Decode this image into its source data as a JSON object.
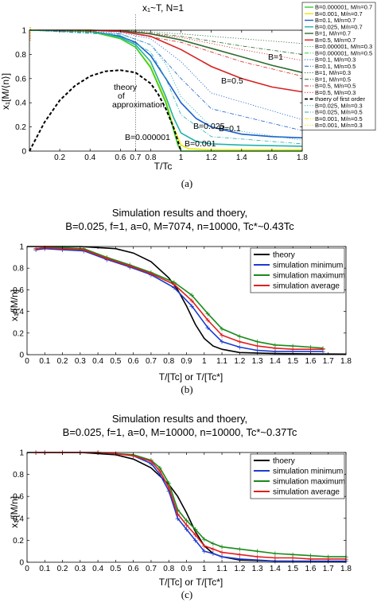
{
  "chart_data": [
    {
      "type": "line",
      "caption": "(a)",
      "title": "x₁~T, N=1",
      "xlabel": "T/Tc",
      "ylabel": "x₁[M/⟨n⟩]",
      "xlim": [
        0,
        1.8
      ],
      "ylim": [
        0,
        1
      ],
      "xticks": [
        "0.2",
        "0.4",
        "0.6",
        "0.7",
        "0.8",
        "1",
        "1.2",
        "1.4",
        "1.6",
        "1.8"
      ],
      "xtick_values": [
        0.2,
        0.4,
        0.6,
        0.7,
        0.8,
        1.0,
        1.2,
        1.4,
        1.6,
        1.8
      ],
      "yticks": [
        "0",
        "0.2",
        "0.4",
        "0.6",
        "0.8",
        "1"
      ],
      "legend_position": "right",
      "legend": [
        {
          "label": "B=0.000001, M/n=0.7",
          "color": "#32cd32",
          "dash": "solid"
        },
        {
          "label": "B=0.001, M/n=0.7",
          "color": "#e8e800",
          "dash": "solid"
        },
        {
          "label": "B=0.1, M/n=0.7",
          "color": "#1a5fd0",
          "dash": "solid"
        },
        {
          "label": "B=0.025, M/n=0.7",
          "color": "#20b2aa",
          "dash": "solid"
        },
        {
          "label": "B=1, M/n=0.7",
          "color": "#2e6b2e",
          "dash": "solid"
        },
        {
          "label": "B=0.5, M/n=0.7",
          "color": "#d62020",
          "dash": "solid"
        },
        {
          "label": "B=0.000001, M/n=0.3",
          "color": "#32cd32",
          "dash": "dotted"
        },
        {
          "label": "B=0.000001, M/n=0.5",
          "color": "#32cd32",
          "dash": "dashdot"
        },
        {
          "label": "B=0.1, M/n=0.3",
          "color": "#1a5fd0",
          "dash": "dotted"
        },
        {
          "label": "B=0.1, M/n=0.5",
          "color": "#1a5fd0",
          "dash": "dashdot"
        },
        {
          "label": "B=1, M/n=0.3",
          "color": "#2e6b2e",
          "dash": "dotted"
        },
        {
          "label": "B=1, M/n=0.5",
          "color": "#2e6b2e",
          "dash": "dashdot"
        },
        {
          "label": "B=0.5, M/n=0.5",
          "color": "#d62020",
          "dash": "dashdot"
        },
        {
          "label": "B=0.5, M/n=0.3",
          "color": "#d62020",
          "dash": "dotted"
        },
        {
          "label": "thoery of first order",
          "color": "#000000",
          "dash": "dashed"
        },
        {
          "label": "B=0.025, M/n=0.3",
          "color": "#20b2aa",
          "dash": "dotted"
        },
        {
          "label": "B=0.025, M/n=0.5",
          "color": "#20b2aa",
          "dash": "dashdot"
        },
        {
          "label": "B=0.001, M/n=0.5",
          "color": "#e8e800",
          "dash": "dashdot"
        },
        {
          "label": "B=0.001, M/n=0.3",
          "color": "#e8e800",
          "dash": "dotted"
        }
      ],
      "annotations": [
        "B=1",
        "B=0.5",
        "B=0.1",
        "B=0.025",
        "B=0.000001",
        "B=0.001",
        "theory",
        "of",
        "approximation"
      ],
      "series": [
        {
          "name": "B=1, M/n=0.7",
          "color": "#2e6b2e",
          "dash": "solid",
          "x": [
            0,
            0.4,
            0.6,
            0.8,
            1.0,
            1.2,
            1.4,
            1.6,
            1.8
          ],
          "y": [
            1,
            1,
            0.995,
            0.97,
            0.92,
            0.85,
            0.78,
            0.71,
            0.65
          ]
        },
        {
          "name": "B=0.5, M/n=0.7",
          "color": "#d62020",
          "dash": "solid",
          "x": [
            0,
            0.4,
            0.6,
            0.8,
            1.0,
            1.2,
            1.4,
            1.6,
            1.8
          ],
          "y": [
            1,
            1,
            0.99,
            0.95,
            0.84,
            0.7,
            0.6,
            0.53,
            0.49
          ]
        },
        {
          "name": "B=0.1, M/n=0.7",
          "color": "#1a5fd0",
          "dash": "solid",
          "x": [
            0,
            0.4,
            0.6,
            0.7,
            0.8,
            0.9,
            1.0,
            1.1,
            1.2,
            1.4,
            1.6,
            1.8
          ],
          "y": [
            1,
            0.99,
            0.95,
            0.9,
            0.79,
            0.6,
            0.4,
            0.27,
            0.2,
            0.14,
            0.12,
            0.11
          ]
        },
        {
          "name": "B=0.025, M/n=0.7",
          "color": "#20b2aa",
          "dash": "solid",
          "x": [
            0,
            0.4,
            0.6,
            0.7,
            0.8,
            0.9,
            0.95,
            1.0,
            1.1,
            1.2,
            1.4,
            1.8
          ],
          "y": [
            1,
            0.99,
            0.94,
            0.88,
            0.74,
            0.45,
            0.28,
            0.15,
            0.08,
            0.06,
            0.05,
            0.04
          ]
        },
        {
          "name": "B=0.001, M/n=0.7",
          "color": "#e8e800",
          "dash": "solid",
          "x": [
            0,
            0.4,
            0.6,
            0.7,
            0.8,
            0.9,
            0.95,
            1.0,
            1.05,
            1.2,
            1.8
          ],
          "y": [
            1,
            0.99,
            0.93,
            0.86,
            0.7,
            0.42,
            0.2,
            0.05,
            0.02,
            0.01,
            0.01
          ]
        },
        {
          "name": "B=0.000001, M/n=0.7",
          "color": "#32cd32",
          "dash": "solid",
          "x": [
            0,
            0.4,
            0.6,
            0.7,
            0.8,
            0.9,
            0.95,
            0.98,
            1.0,
            1.2,
            1.8
          ],
          "y": [
            1,
            0.99,
            0.93,
            0.86,
            0.69,
            0.4,
            0.18,
            0.05,
            0,
            0,
            0
          ]
        },
        {
          "name": "thoery of first order",
          "color": "#000000",
          "dash": "dashed",
          "x": [
            0,
            0.1,
            0.2,
            0.3,
            0.4,
            0.5,
            0.6,
            0.7,
            0.8,
            0.85,
            0.9,
            0.95,
            1.0
          ],
          "y": [
            0,
            0.24,
            0.42,
            0.54,
            0.62,
            0.66,
            0.67,
            0.65,
            0.56,
            0.47,
            0.35,
            0.2,
            0
          ]
        },
        {
          "name": "B=1, M/n=0.5",
          "color": "#2e6b2e",
          "dash": "dashdot",
          "x": [
            0,
            0.6,
            1.0,
            1.4,
            1.8
          ],
          "y": [
            1,
            1,
            0.95,
            0.87,
            0.8
          ]
        },
        {
          "name": "B=1, M/n=0.3",
          "color": "#2e6b2e",
          "dash": "dotted",
          "x": [
            0,
            0.6,
            1.0,
            1.4,
            1.8
          ],
          "y": [
            1,
            1,
            0.97,
            0.93,
            0.89
          ]
        },
        {
          "name": "B=0.5, M/n=0.5",
          "color": "#d62020",
          "dash": "dashdot",
          "x": [
            0,
            0.6,
            1.0,
            1.4,
            1.8
          ],
          "y": [
            1,
            0.99,
            0.9,
            0.74,
            0.62
          ]
        },
        {
          "name": "B=0.5, M/n=0.3",
          "color": "#d62020",
          "dash": "dotted",
          "x": [
            0,
            0.6,
            1.0,
            1.4,
            1.8
          ],
          "y": [
            1,
            1,
            0.94,
            0.84,
            0.75
          ]
        },
        {
          "name": "B=0.1, M/n=0.5",
          "color": "#1a5fd0",
          "dash": "dashdot",
          "x": [
            0,
            0.6,
            0.8,
            1.0,
            1.2,
            1.8
          ],
          "y": [
            1,
            0.97,
            0.88,
            0.6,
            0.35,
            0.17
          ]
        },
        {
          "name": "B=0.1, M/n=0.3",
          "color": "#1a5fd0",
          "dash": "dotted",
          "x": [
            0,
            0.6,
            0.8,
            1.0,
            1.2,
            1.8
          ],
          "y": [
            1,
            0.98,
            0.93,
            0.74,
            0.48,
            0.26
          ]
        },
        {
          "name": "B=0.025, M/n=0.5",
          "color": "#20b2aa",
          "dash": "dashdot",
          "x": [
            0,
            0.6,
            0.8,
            0.9,
            1.0,
            1.2,
            1.8
          ],
          "y": [
            1,
            0.96,
            0.82,
            0.6,
            0.3,
            0.12,
            0.06
          ]
        },
        {
          "name": "B=0.025, M/n=0.3",
          "color": "#20b2aa",
          "dash": "dotted",
          "x": [
            0,
            0.6,
            0.8,
            0.9,
            1.0,
            1.2,
            1.8
          ],
          "y": [
            1,
            0.97,
            0.88,
            0.72,
            0.45,
            0.2,
            0.09
          ]
        }
      ]
    },
    {
      "type": "line",
      "caption": "(b)",
      "title": "Simulation results and thoery,",
      "subtitle": "B=0.025, f=1, a=0, M=7074, n=10000, Tc*~0.43Tc",
      "xlabel": "T/[Tc] or T/[Tc*]",
      "ylabel": "x₁/[M/n]",
      "xlim": [
        0,
        1.8
      ],
      "ylim": [
        0,
        1
      ],
      "xticks": [
        "0",
        "0.1",
        "0.2",
        "0.3",
        "0.4",
        "0.5",
        "0.6",
        "0.7",
        "0.8",
        "0.9",
        "1",
        "1.1",
        "1.2",
        "1.3",
        "1.4",
        "1.5",
        "1.6",
        "1.7",
        "1.8"
      ],
      "yticks": [
        "0",
        "0.2",
        "0.4",
        "0.6",
        "0.8",
        "1"
      ],
      "legend_position": "top-right",
      "series": [
        {
          "name": "theory",
          "color": "#000000",
          "x": [
            0,
            0.3,
            0.5,
            0.6,
            0.7,
            0.8,
            0.85,
            0.9,
            0.95,
            1.0,
            1.05,
            1.1,
            1.2,
            1.4,
            1.8
          ],
          "y": [
            1,
            1,
            0.98,
            0.94,
            0.86,
            0.71,
            0.6,
            0.45,
            0.28,
            0.15,
            0.08,
            0.05,
            0.02,
            0.01,
            0.005
          ]
        },
        {
          "name": "simulation minimum",
          "color": "#1a3ccf",
          "x": [
            0.05,
            0.1,
            0.2,
            0.32,
            0.45,
            0.58,
            0.7,
            0.83,
            0.93,
            1.02,
            1.1,
            1.2,
            1.3,
            1.4,
            1.5,
            1.6,
            1.67
          ],
          "y": [
            0.97,
            0.98,
            0.97,
            0.96,
            0.88,
            0.81,
            0.74,
            0.62,
            0.45,
            0.25,
            0.12,
            0.07,
            0.04,
            0.03,
            0.03,
            0.03,
            0.03
          ]
        },
        {
          "name": "simulation maximum",
          "color": "#1a8a1a",
          "x": [
            0.05,
            0.1,
            0.2,
            0.32,
            0.45,
            0.58,
            0.7,
            0.83,
            0.93,
            1.02,
            1.1,
            1.2,
            1.3,
            1.4,
            1.5,
            1.6,
            1.67
          ],
          "y": [
            0.98,
            0.99,
            0.99,
            0.98,
            0.9,
            0.83,
            0.76,
            0.67,
            0.55,
            0.38,
            0.24,
            0.17,
            0.12,
            0.09,
            0.08,
            0.07,
            0.06
          ]
        },
        {
          "name": "simulation average",
          "color": "#e01e1e",
          "x": [
            0.05,
            0.1,
            0.2,
            0.32,
            0.45,
            0.58,
            0.7,
            0.83,
            0.93,
            1.02,
            1.1,
            1.2,
            1.3,
            1.4,
            1.5,
            1.6,
            1.67
          ],
          "y": [
            0.98,
            0.99,
            0.98,
            0.97,
            0.89,
            0.82,
            0.75,
            0.65,
            0.5,
            0.32,
            0.18,
            0.12,
            0.08,
            0.06,
            0.05,
            0.05,
            0.05
          ]
        }
      ]
    },
    {
      "type": "line",
      "caption": "(c)",
      "title": "Simulation results and thoery,",
      "subtitle": "B=0.025, f=1, a=0, M=10000, n=10000, Tc*~0.37Tc",
      "xlabel": "T/[Tc] or T/[Tc*]",
      "ylabel": "x₁/[M/n]",
      "xlim": [
        0,
        1.8
      ],
      "ylim": [
        0,
        1
      ],
      "xticks": [
        "0",
        "0.1",
        "0.2",
        "0.3",
        "0.4",
        "0.5",
        "0.6",
        "0.7",
        "0.8",
        "0.9",
        "1",
        "1.1",
        "1.2",
        "1.3",
        "1.4",
        "1.5",
        "1.6",
        "1.7",
        "1.8"
      ],
      "yticks": [
        "0",
        "0.2",
        "0.4",
        "0.6",
        "0.8",
        "1"
      ],
      "legend_position": "top-right",
      "series": [
        {
          "name": "thoery",
          "color": "#000000",
          "x": [
            0,
            0.3,
            0.5,
            0.6,
            0.7,
            0.8,
            0.85,
            0.9,
            0.95,
            1.0,
            1.05,
            1.1,
            1.2,
            1.4,
            1.8
          ],
          "y": [
            1,
            1,
            0.98,
            0.94,
            0.86,
            0.71,
            0.6,
            0.45,
            0.28,
            0.15,
            0.08,
            0.05,
            0.02,
            0.01,
            0.005
          ]
        },
        {
          "name": "simulation minimum",
          "color": "#1a3ccf",
          "x": [
            0.05,
            0.1,
            0.2,
            0.3,
            0.4,
            0.5,
            0.6,
            0.7,
            0.75,
            0.8,
            0.85,
            0.9,
            0.95,
            1.0,
            1.05,
            1.1,
            1.2,
            1.3,
            1.4,
            1.5,
            1.6,
            1.7,
            1.8
          ],
          "y": [
            1,
            1,
            1,
            1,
            1,
            0.99,
            0.97,
            0.9,
            0.8,
            0.65,
            0.4,
            0.3,
            0.2,
            0.1,
            0.08,
            0.05,
            0.03,
            0.02,
            0.01,
            0.01,
            0.01,
            0.01,
            0.01
          ]
        },
        {
          "name": "simulation maximum",
          "color": "#1a8a1a",
          "x": [
            0.05,
            0.1,
            0.2,
            0.3,
            0.4,
            0.5,
            0.6,
            0.7,
            0.75,
            0.8,
            0.85,
            0.9,
            0.95,
            1.0,
            1.05,
            1.1,
            1.2,
            1.3,
            1.4,
            1.5,
            1.6,
            1.7,
            1.8
          ],
          "y": [
            1,
            1,
            1,
            1,
            1,
            0.99,
            0.98,
            0.93,
            0.86,
            0.72,
            0.48,
            0.38,
            0.3,
            0.21,
            0.17,
            0.14,
            0.12,
            0.1,
            0.08,
            0.07,
            0.06,
            0.05,
            0.05
          ]
        },
        {
          "name": "simulation average",
          "color": "#e01e1e",
          "x": [
            0.05,
            0.1,
            0.2,
            0.3,
            0.4,
            0.5,
            0.6,
            0.7,
            0.75,
            0.8,
            0.85,
            0.9,
            0.95,
            1.0,
            1.05,
            1.1,
            1.2,
            1.3,
            1.4,
            1.5,
            1.6,
            1.7,
            1.8
          ],
          "y": [
            1,
            1,
            1,
            1,
            1,
            0.99,
            0.97,
            0.92,
            0.83,
            0.68,
            0.44,
            0.34,
            0.25,
            0.15,
            0.12,
            0.09,
            0.07,
            0.05,
            0.04,
            0.04,
            0.03,
            0.03,
            0.03
          ]
        }
      ]
    }
  ]
}
